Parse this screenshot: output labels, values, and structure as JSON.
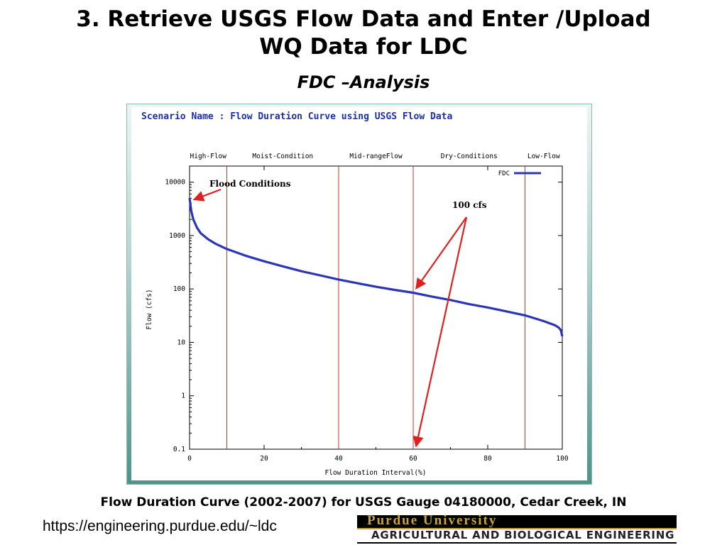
{
  "slide": {
    "title_line1": "3. Retrieve USGS Flow Data and Enter /Upload",
    "title_line2": "WQ Data for LDC",
    "subtitle": "FDC –Analysis",
    "caption": "Flow Duration Curve (2002-2007) for USGS Gauge 04180000, Cedar Creek, IN",
    "url": "https://engineering.purdue.edu/~ldc"
  },
  "logo": {
    "wordmark": "Purdue University",
    "department": "AGRICULTURAL AND BIOLOGICAL ENGINEERING"
  },
  "chart_data": {
    "type": "line",
    "title": "Scenario Name : Flow Duration Curve using USGS Flow Data",
    "xlabel": "Flow Duration Interval(%)",
    "ylabel": "Flow (cfs)",
    "xlim": [
      0,
      100
    ],
    "ylim": [
      0.1,
      20000
    ],
    "yscale": "log",
    "x_ticks": [
      0,
      20,
      40,
      60,
      80,
      100
    ],
    "y_ticks": [
      0.1,
      1,
      10,
      100,
      1000,
      10000
    ],
    "x_tick_labels": [
      "0",
      "20",
      "40",
      "60",
      "80",
      "100"
    ],
    "y_tick_labels": [
      "0.1",
      "1",
      "10",
      "100",
      "1000",
      "10000"
    ],
    "grid": false,
    "legend_position": "top-right",
    "series": [
      {
        "name": "FDC",
        "color": "#2b35b8",
        "x": [
          0,
          0.5,
          1,
          2,
          3,
          5,
          7,
          10,
          15,
          20,
          25,
          30,
          35,
          40,
          45,
          50,
          55,
          60,
          65,
          70,
          75,
          80,
          85,
          90,
          95,
          98,
          99,
          99.6,
          100
        ],
        "y": [
          5000,
          2800,
          2000,
          1400,
          1100,
          850,
          700,
          560,
          420,
          330,
          265,
          215,
          180,
          150,
          128,
          110,
          96,
          85,
          72,
          62,
          52,
          45,
          38,
          32,
          25,
          21,
          19,
          17,
          13
        ]
      }
    ],
    "vertical_lines": {
      "color": "#c0392b",
      "x": [
        10,
        40,
        60,
        90
      ]
    },
    "zones": [
      "High-Flow",
      "Moist-Condition",
      "Mid-rangeFlow",
      "Dry-Conditions",
      "Low-Flow"
    ],
    "annotations": {
      "flood": {
        "text": "Flood Conditions",
        "target_x": 0,
        "target_y": 5000
      },
      "cfs": {
        "text": "100 cfs",
        "target_points": [
          {
            "x": 60,
            "y": 90
          },
          {
            "x": 60,
            "y": 0.1
          }
        ]
      },
      "arrow_color": "#e02020"
    }
  }
}
